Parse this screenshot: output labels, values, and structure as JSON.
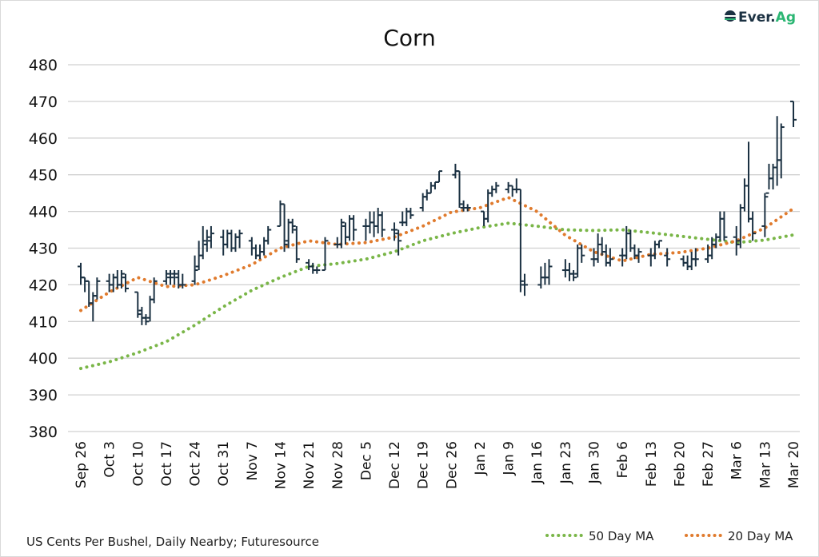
{
  "chart_data": {
    "type": "ohlc",
    "title": "Corn",
    "footnote": "US Cents Per Bushel, Daily Nearby; Futuresource",
    "logo_text": "Ever.Ag",
    "ylim": [
      380,
      480
    ],
    "yticks": [
      380,
      390,
      400,
      410,
      420,
      430,
      440,
      450,
      460,
      470,
      480
    ],
    "xlim": [
      "2022-09-26",
      "2023-03-20"
    ],
    "xtick_labels": [
      "Sep 26",
      "Oct 3",
      "Oct 10",
      "Oct 17",
      "Oct 24",
      "Oct 31",
      "Nov 7",
      "Nov 14",
      "Nov 21",
      "Nov 28",
      "Dec 5",
      "Dec 12",
      "Dec 19",
      "Dec 26",
      "Jan 2",
      "Jan 9",
      "Jan 16",
      "Jan 23",
      "Jan 30",
      "Feb 6",
      "Feb 13",
      "Feb 20",
      "Feb 27",
      "Mar 6",
      "Mar 13",
      "Mar 20"
    ],
    "grid": true,
    "legend_position": "bottom-right",
    "colors": {
      "bars": "#1b3142",
      "ma50": "#7ab648",
      "ma20": "#e07b2e",
      "grid": "#d0d0d0"
    },
    "bars": [
      [
        "2022-09-26",
        425,
        426,
        420,
        422
      ],
      [
        "2022-09-27",
        422,
        422,
        418,
        421
      ],
      [
        "2022-09-28",
        421,
        421,
        414,
        415
      ],
      [
        "2022-09-29",
        415,
        418,
        410,
        417
      ],
      [
        "2022-09-30",
        417,
        422,
        416,
        421
      ],
      [
        "2022-10-03",
        421,
        423,
        418,
        420
      ],
      [
        "2022-10-04",
        420,
        423,
        418,
        422
      ],
      [
        "2022-10-05",
        422,
        424,
        419,
        420
      ],
      [
        "2022-10-06",
        420,
        424,
        419,
        423
      ],
      [
        "2022-10-07",
        422,
        423,
        418,
        419
      ],
      [
        "2022-10-10",
        418,
        418,
        411,
        412
      ],
      [
        "2022-10-11",
        413,
        414,
        409,
        411
      ],
      [
        "2022-10-12",
        411,
        412,
        409,
        410
      ],
      [
        "2022-10-13",
        411,
        417,
        410,
        416
      ],
      [
        "2022-10-14",
        416,
        422,
        415,
        421
      ],
      [
        "2022-10-17",
        421,
        424,
        420,
        423
      ],
      [
        "2022-10-18",
        422,
        424,
        420,
        422
      ],
      [
        "2022-10-19",
        423,
        424,
        420,
        423
      ],
      [
        "2022-10-20",
        422,
        424,
        419,
        420
      ],
      [
        "2022-10-21",
        420,
        423,
        419,
        420
      ],
      [
        "2022-10-24",
        421,
        428,
        420,
        424
      ],
      [
        "2022-10-25",
        425,
        432,
        424,
        428
      ],
      [
        "2022-10-26",
        428,
        436,
        427,
        432
      ],
      [
        "2022-10-27",
        431,
        435,
        429,
        433
      ],
      [
        "2022-10-28",
        432,
        436,
        430,
        434
      ],
      [
        "2022-10-31",
        433,
        435,
        428,
        431
      ],
      [
        "2022-11-01",
        431,
        435,
        430,
        434
      ],
      [
        "2022-11-02",
        434,
        435,
        429,
        430
      ],
      [
        "2022-11-03",
        430,
        434,
        429,
        433
      ],
      [
        "2022-11-04",
        433,
        435,
        430,
        434
      ],
      [
        "2022-11-07",
        432,
        433,
        428,
        430
      ],
      [
        "2022-11-08",
        430,
        431,
        427,
        428
      ],
      [
        "2022-11-09",
        428,
        431,
        427,
        429
      ],
      [
        "2022-11-10",
        429,
        433,
        428,
        432
      ],
      [
        "2022-11-11",
        432,
        436,
        431,
        435
      ],
      [
        "2022-11-14",
        436,
        443,
        436,
        442
      ],
      [
        "2022-11-15",
        442,
        442,
        429,
        431
      ],
      [
        "2022-11-16",
        432,
        438,
        430,
        437
      ],
      [
        "2022-11-17",
        437,
        438,
        434,
        436
      ],
      [
        "2022-11-18",
        435,
        436,
        426,
        427
      ],
      [
        "2022-11-21",
        426,
        427,
        424,
        425
      ],
      [
        "2022-11-22",
        425,
        426,
        423,
        424
      ],
      [
        "2022-11-23",
        424,
        425,
        423,
        424
      ],
      [
        "2022-11-25",
        424,
        433,
        424,
        432
      ],
      [
        "2022-11-28",
        431,
        433,
        430,
        431
      ],
      [
        "2022-11-29",
        431,
        438,
        430,
        437
      ],
      [
        "2022-11-30",
        436,
        437,
        431,
        433
      ],
      [
        "2022-12-01",
        433,
        439,
        432,
        438
      ],
      [
        "2022-12-02",
        438,
        439,
        432,
        435
      ],
      [
        "2022-12-05",
        436,
        438,
        432,
        436
      ],
      [
        "2022-12-06",
        436,
        440,
        434,
        437
      ],
      [
        "2022-12-07",
        437,
        440,
        433,
        436
      ],
      [
        "2022-12-08",
        436,
        441,
        434,
        439
      ],
      [
        "2022-12-09",
        439,
        440,
        433,
        435
      ],
      [
        "2022-12-12",
        435,
        437,
        432,
        435
      ],
      [
        "2022-12-13",
        434,
        435,
        428,
        432
      ],
      [
        "2022-12-14",
        437,
        440,
        436,
        437
      ],
      [
        "2022-12-15",
        437,
        441,
        436,
        440
      ],
      [
        "2022-12-16",
        440,
        441,
        438,
        439
      ],
      [
        "2022-12-19",
        441,
        445,
        440,
        444
      ],
      [
        "2022-12-20",
        444,
        446,
        443,
        445
      ],
      [
        "2022-12-21",
        445,
        448,
        445,
        447
      ],
      [
        "2022-12-22",
        447,
        448,
        446,
        448
      ],
      [
        "2022-12-23",
        448,
        451,
        448,
        451
      ],
      [
        "2022-12-27",
        450,
        453,
        449,
        451
      ],
      [
        "2022-12-28",
        451,
        451,
        441,
        442
      ],
      [
        "2022-12-29",
        441,
        443,
        440,
        441
      ],
      [
        "2022-12-30",
        441,
        442,
        440,
        441
      ],
      [
        "2023-01-03",
        440,
        440,
        436,
        438
      ],
      [
        "2023-01-04",
        438,
        446,
        437,
        445
      ],
      [
        "2023-01-05",
        445,
        447,
        444,
        446
      ],
      [
        "2023-01-06",
        446,
        448,
        445,
        447
      ],
      [
        "2023-01-09",
        446,
        448,
        445,
        447
      ],
      [
        "2023-01-10",
        447,
        447,
        444,
        446
      ],
      [
        "2023-01-11",
        446,
        449,
        445,
        446
      ],
      [
        "2023-01-12",
        446,
        446,
        418,
        421
      ],
      [
        "2023-01-13",
        420,
        423,
        417,
        420
      ],
      [
        "2023-01-17",
        420,
        425,
        419,
        422
      ],
      [
        "2023-01-18",
        422,
        426,
        420,
        422
      ],
      [
        "2023-01-19",
        422,
        427,
        420,
        425
      ],
      [
        "2023-01-23",
        424,
        427,
        422,
        424
      ],
      [
        "2023-01-24",
        424,
        426,
        421,
        423
      ],
      [
        "2023-01-25",
        423,
        424,
        421,
        422
      ],
      [
        "2023-01-26",
        423,
        431,
        422,
        430
      ],
      [
        "2023-01-27",
        430,
        431,
        426,
        428
      ],
      [
        "2023-01-30",
        427,
        430,
        425,
        427
      ],
      [
        "2023-01-31",
        427,
        434,
        426,
        431
      ],
      [
        "2023-02-01",
        431,
        433,
        428,
        429
      ],
      [
        "2023-02-02",
        429,
        431,
        425,
        426
      ],
      [
        "2023-02-03",
        426,
        430,
        425,
        427
      ],
      [
        "2023-02-06",
        428,
        430,
        425,
        428
      ],
      [
        "2023-02-07",
        428,
        436,
        427,
        434
      ],
      [
        "2023-02-08",
        434,
        435,
        429,
        430
      ],
      [
        "2023-02-09",
        430,
        431,
        427,
        428
      ],
      [
        "2023-02-10",
        428,
        430,
        426,
        429
      ],
      [
        "2023-02-13",
        428,
        430,
        425,
        428
      ],
      [
        "2023-02-14",
        428,
        432,
        427,
        431
      ],
      [
        "2023-02-15",
        431,
        432,
        430,
        432
      ],
      [
        "2023-02-17",
        428,
        430,
        425,
        427
      ],
      [
        "2023-02-21",
        427,
        428,
        425,
        426
      ],
      [
        "2023-02-22",
        426,
        428,
        424,
        425
      ],
      [
        "2023-02-23",
        425,
        429,
        424,
        427
      ],
      [
        "2023-02-24",
        427,
        430,
        425,
        427
      ],
      [
        "2023-02-27",
        427,
        431,
        426,
        428
      ],
      [
        "2023-02-28",
        428,
        433,
        427,
        431
      ],
      [
        "2023-03-01",
        431,
        434,
        430,
        433
      ],
      [
        "2023-03-02",
        433,
        440,
        432,
        438
      ],
      [
        "2023-03-03",
        438,
        440,
        432,
        433
      ],
      [
        "2023-03-06",
        433,
        436,
        428,
        431
      ],
      [
        "2023-03-07",
        432,
        442,
        430,
        441
      ],
      [
        "2023-03-08",
        441,
        449,
        440,
        447
      ],
      [
        "2023-03-09",
        447,
        459,
        437,
        438
      ],
      [
        "2023-03-10",
        438,
        440,
        432,
        434
      ],
      [
        "2023-03-13",
        436,
        445,
        433,
        444
      ],
      [
        "2023-03-14",
        445,
        453,
        446,
        449
      ],
      [
        "2023-03-15",
        449,
        453,
        446,
        452
      ],
      [
        "2023-03-16",
        452,
        466,
        447,
        454
      ],
      [
        "2023-03-17",
        454,
        464,
        449,
        463
      ],
      [
        "2023-03-20",
        470,
        470,
        463,
        465
      ]
    ],
    "series": [
      {
        "name": "50 Day MA",
        "points": [
          [
            "2022-09-26",
            397.2
          ],
          [
            "2022-10-03",
            399
          ],
          [
            "2022-10-10",
            401.5
          ],
          [
            "2022-10-17",
            404.5
          ],
          [
            "2022-10-24",
            409
          ],
          [
            "2022-10-31",
            414
          ],
          [
            "2022-11-07",
            418.5
          ],
          [
            "2022-11-14",
            422
          ],
          [
            "2022-11-21",
            425
          ],
          [
            "2022-11-28",
            425.8
          ],
          [
            "2022-12-05",
            427
          ],
          [
            "2022-12-12",
            429
          ],
          [
            "2022-12-19",
            432
          ],
          [
            "2022-12-26",
            434
          ],
          [
            "2023-01-02",
            435.6
          ],
          [
            "2023-01-09",
            436.8
          ],
          [
            "2023-01-16",
            436
          ],
          [
            "2023-01-23",
            435
          ],
          [
            "2023-01-30",
            434.8
          ],
          [
            "2023-02-06",
            435
          ],
          [
            "2023-02-13",
            434.2
          ],
          [
            "2023-02-20",
            433.3
          ],
          [
            "2023-02-27",
            432.4
          ],
          [
            "2023-03-06",
            431.5
          ],
          [
            "2023-03-13",
            432.2
          ],
          [
            "2023-03-20",
            433.6
          ]
        ]
      },
      {
        "name": "20 Day MA",
        "points": [
          [
            "2022-09-26",
            413
          ],
          [
            "2022-10-03",
            418
          ],
          [
            "2022-10-10",
            422
          ],
          [
            "2022-10-17",
            419.5
          ],
          [
            "2022-10-24",
            420
          ],
          [
            "2022-10-31",
            422.5
          ],
          [
            "2022-11-07",
            425.5
          ],
          [
            "2022-11-14",
            430
          ],
          [
            "2022-11-21",
            432
          ],
          [
            "2022-11-28",
            431
          ],
          [
            "2022-12-05",
            431.5
          ],
          [
            "2022-12-12",
            433
          ],
          [
            "2022-12-19",
            436
          ],
          [
            "2022-12-26",
            439.8
          ],
          [
            "2023-01-02",
            441
          ],
          [
            "2023-01-09",
            443.8
          ],
          [
            "2023-01-16",
            440
          ],
          [
            "2023-01-23",
            433.5
          ],
          [
            "2023-01-30",
            429
          ],
          [
            "2023-02-06",
            426.5
          ],
          [
            "2023-02-13",
            428.3
          ],
          [
            "2023-02-20",
            428.8
          ],
          [
            "2023-02-27",
            430
          ],
          [
            "2023-03-06",
            432
          ],
          [
            "2023-03-13",
            435.5
          ],
          [
            "2023-03-20",
            440.8
          ]
        ]
      }
    ]
  }
}
